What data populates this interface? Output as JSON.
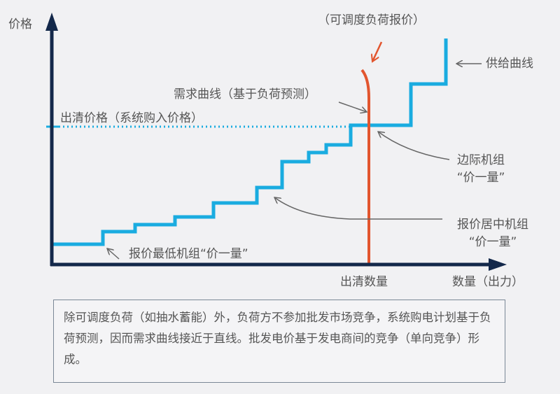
{
  "labels": {
    "y_axis": "价格",
    "x_axis": "数量（出力）",
    "clearing_quantity": "出清数量",
    "dispatchable_bid": "（可调度负荷报价）",
    "supply_curve": "供给曲线",
    "demand_curve": "需求曲线（基于负荷预测）",
    "clearing_price": "出清价格（系统购入价格）",
    "marginal_unit_line1": "边际机组",
    "marginal_unit_line2": "“价一量”",
    "mid_unit_line1": "报价居中机组",
    "mid_unit_line2": "“价一量”",
    "lowest_unit": "报价最低机组“价一量”"
  },
  "note": "除可调度负荷（如抽水蓄能）外，负荷方不参加批发市场竞争，系统购电计划基于负荷预测，因而需求曲线接近于直线。批发电价基于发电商间的竞争（单向竞争）形成。",
  "colors": {
    "axis": "#13284a",
    "supply": "#1aace0",
    "demand": "#e2552e",
    "text": "#555555",
    "arrow": "#666666"
  }
}
